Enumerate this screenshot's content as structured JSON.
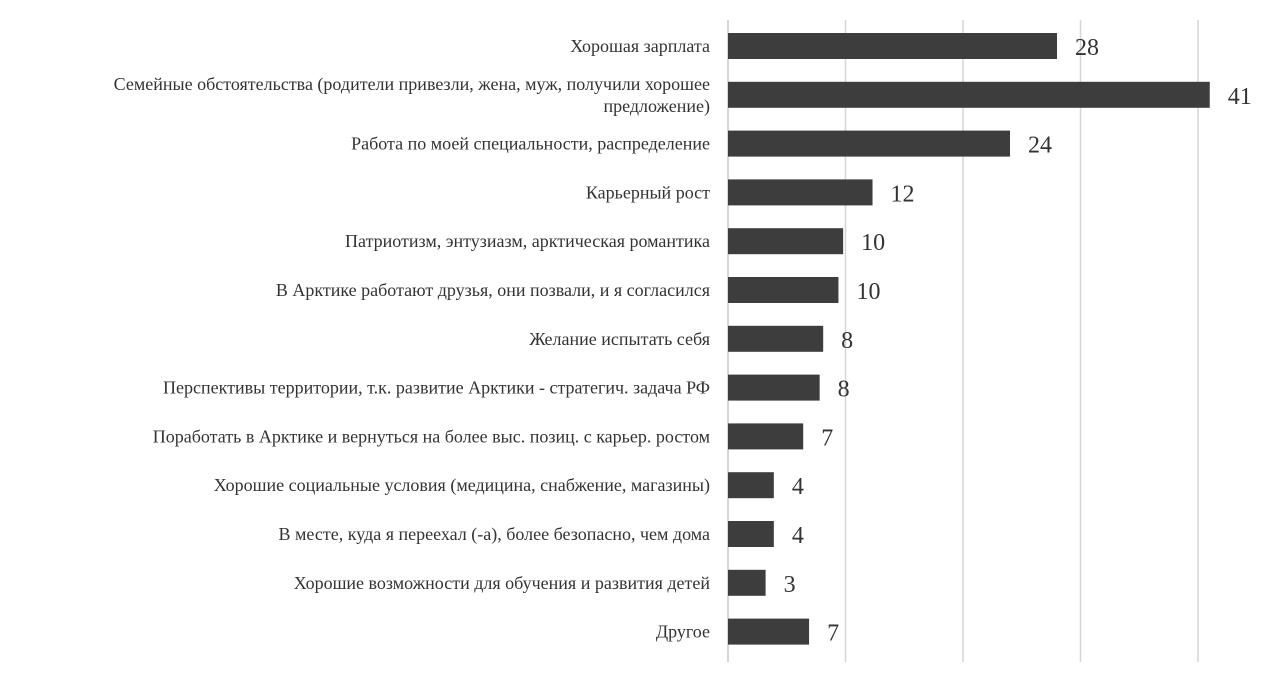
{
  "chart_data": {
    "type": "bar",
    "orientation": "horizontal",
    "categories": [
      [
        "Хорошая зарплата"
      ],
      [
        "Семейные обстоятельства (родители привезли, жена, муж, получили хорошее",
        "предложение)"
      ],
      [
        "Работа по моей специальности, распределение"
      ],
      [
        "Карьерный рост"
      ],
      [
        "Патриотизм, энтузиазм, арктическая романтика"
      ],
      [
        "В Арктике работают друзья, они позвали, и я согласился"
      ],
      [
        "Желание испытать себя"
      ],
      [
        "Перспективы территории, т.к. развитие Арктики - стратегич. задача РФ"
      ],
      [
        "Поработать в Арктике и вернуться на более выс. позиц. с карьер. ростом"
      ],
      [
        "Хорошие социальные условия (медицина, снабжение, магазины)"
      ],
      [
        "В месте, куда я переехал (-а), более безопасно, чем дома"
      ],
      [
        "Хорошие возможности для обучения и развития детей"
      ],
      [
        "Другое"
      ]
    ],
    "values": [
      28,
      41,
      24,
      12,
      10,
      10,
      8,
      8,
      7,
      4,
      4,
      3,
      7
    ],
    "data_labels": [
      "28",
      "41",
      "24",
      "12",
      "10",
      "10",
      "8",
      "8",
      "7",
      "4",
      "4",
      "3",
      "7"
    ],
    "bar_values": [
      28,
      41,
      24,
      12.3,
      9.8,
      9.4,
      8.1,
      7.8,
      6.4,
      3.9,
      3.9,
      3.2,
      6.9
    ],
    "xlim": [
      0,
      41
    ],
    "grid": true,
    "gridline_values": [
      0,
      10,
      20,
      30,
      40
    ],
    "legend": "none",
    "title": "",
    "xlabel": "",
    "ylabel": "",
    "colors": {
      "bar": "#3d3d3d",
      "grid": "#d6d6d6",
      "text": "#333333",
      "background": "#ffffff"
    }
  }
}
